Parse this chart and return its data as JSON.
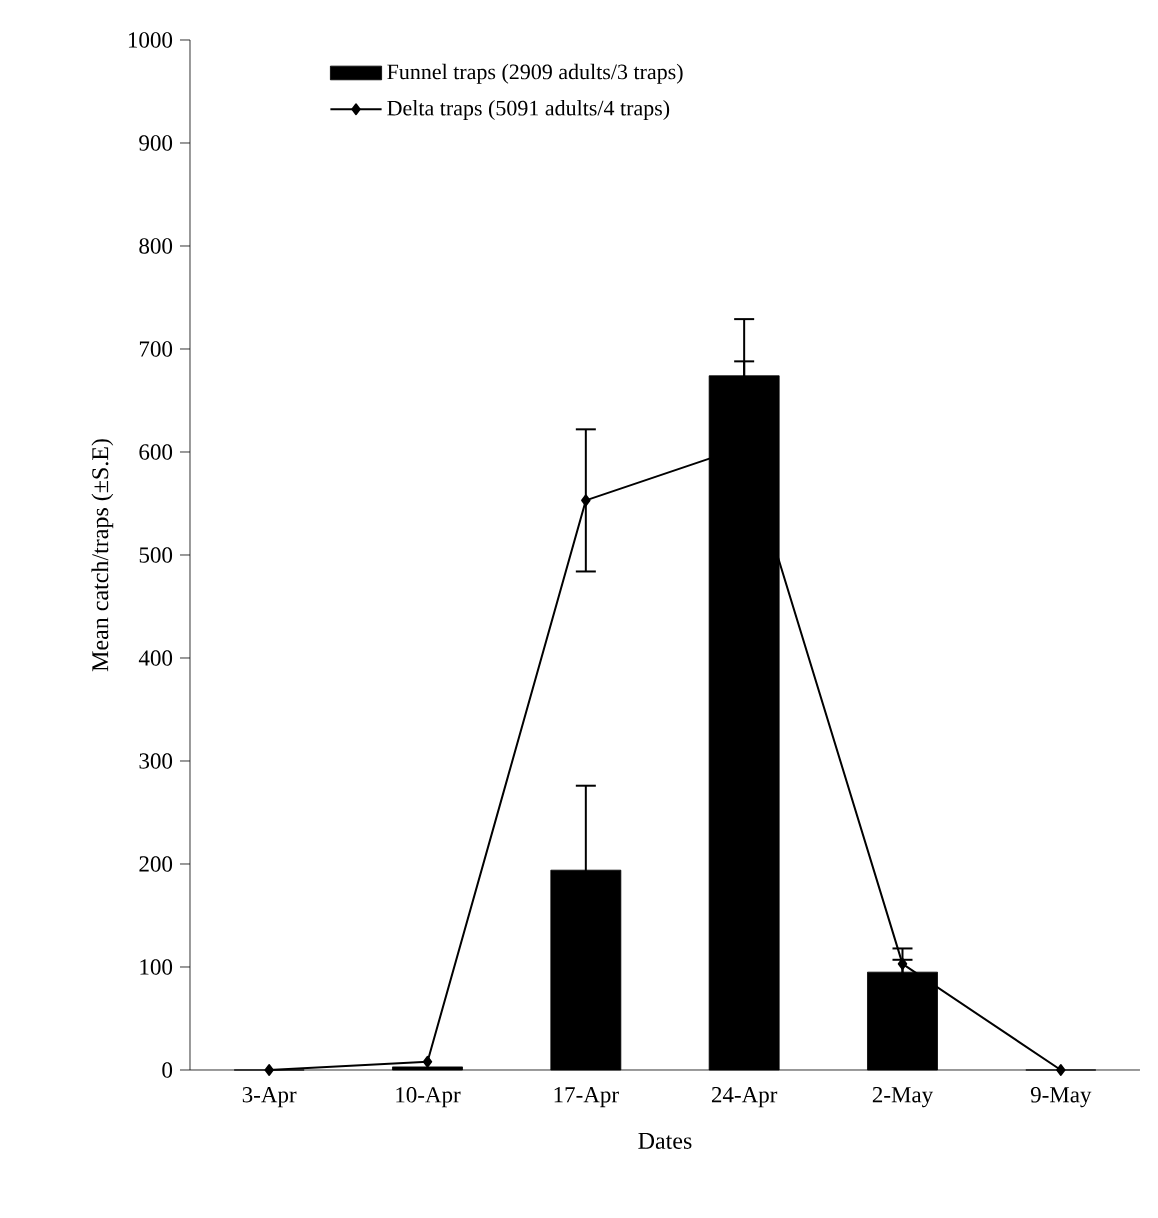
{
  "chart_data": {
    "type": "bar",
    "xlabel": "Dates",
    "ylabel": "Mean catch/traps (±S.E)",
    "categories": [
      "3-Apr",
      "10-Apr",
      "17-Apr",
      "24-Apr",
      "2-May",
      "9-May"
    ],
    "series": [
      {
        "name": "Funnel traps (2909 adults/3 traps)",
        "color": "#000000",
        "values": [
          0,
          3,
          194,
          674,
          95,
          0
        ],
        "errors": [
          null,
          null,
          82,
          55,
          12,
          null
        ]
      },
      {
        "name": "Delta traps (5091 adults/4 traps)",
        "type": "line",
        "color": "#000000",
        "marker": "diamond",
        "values": [
          0,
          8,
          553,
          605,
          103,
          0
        ],
        "errors": [
          null,
          null,
          69,
          83,
          15,
          null
        ]
      }
    ],
    "ylim": [
      0,
      1000
    ],
    "yticks": [
      0,
      100,
      200,
      300,
      400,
      500,
      600,
      700,
      800,
      900,
      1000
    ],
    "legend": "top",
    "grid": false
  }
}
